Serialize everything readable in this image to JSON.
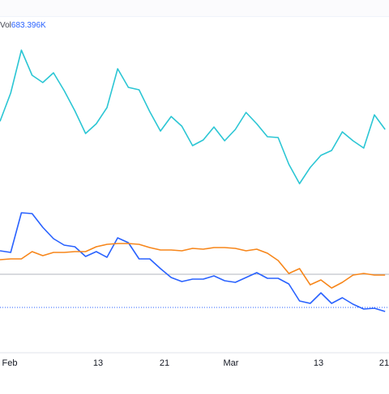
{
  "legend": {
    "volume_label": "Vol",
    "volume_value": "683.396K"
  },
  "colors": {
    "teal": "#2bc6d4",
    "blue": "#2962ff",
    "orange": "#f7861a",
    "ref_solid": "#b2b5be",
    "ref_dotted": "#2962ff"
  },
  "chart_data": {
    "type": "line",
    "x_ticks": [
      "Feb",
      "13",
      "21",
      "Mar",
      "13",
      "21"
    ],
    "grid": false,
    "series": [
      {
        "color": "#2bc6d4",
        "values": [
          150,
          115,
          62,
          93,
          102,
          90,
          112,
          137,
          165,
          153,
          133,
          85,
          108,
          111,
          138,
          162,
          144,
          156,
          180,
          173,
          157,
          174,
          160,
          139,
          153,
          169,
          170,
          203,
          227,
          207,
          192,
          186,
          163,
          174,
          183,
          142,
          160
        ]
      },
      {
        "color": "#2962ff",
        "values": [
          310,
          312,
          263,
          264,
          281,
          295,
          303,
          305,
          317,
          311,
          318,
          294,
          300,
          320,
          320,
          332,
          343,
          348,
          345,
          345,
          341,
          347,
          349,
          343,
          337,
          344,
          344,
          351,
          372,
          375,
          362,
          375,
          368,
          376,
          382,
          381,
          385
        ]
      },
      {
        "color": "#f7861a",
        "values": [
          321,
          320,
          320,
          311,
          316,
          312,
          312,
          311,
          311,
          305,
          302,
          301,
          301,
          302,
          306,
          309,
          309,
          310,
          307,
          308,
          306,
          306,
          307,
          310,
          308,
          313,
          322,
          338,
          332,
          352,
          346,
          356,
          349,
          340,
          338,
          340,
          340
        ]
      }
    ]
  }
}
